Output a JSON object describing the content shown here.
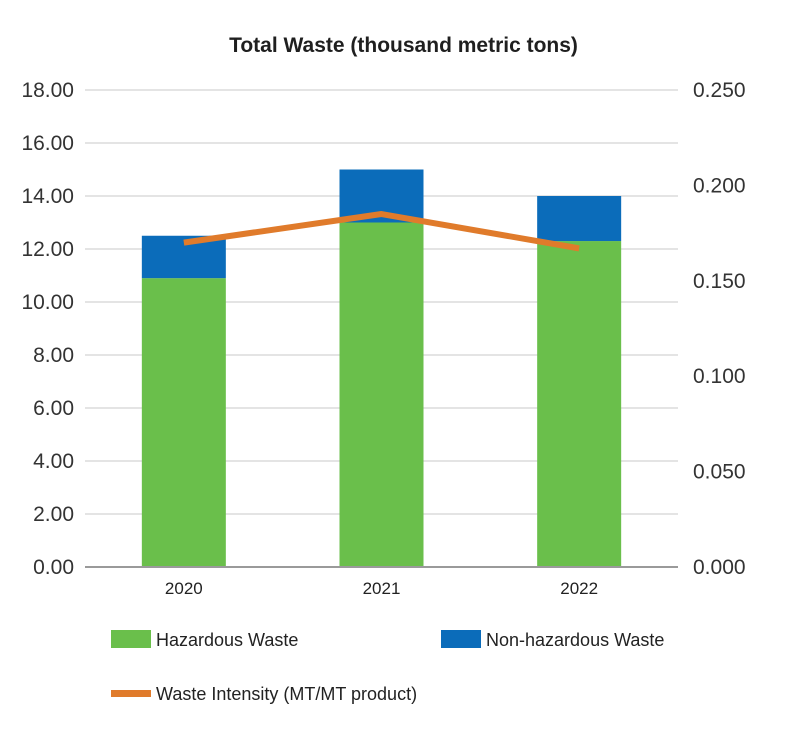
{
  "chart_data": {
    "type": "bar",
    "stacked": true,
    "title": "Total Waste (thousand metric tons)",
    "categories": [
      "2020",
      "2021",
      "2022"
    ],
    "series": [
      {
        "name": "Hazardous Waste",
        "axis": "left",
        "color": "#6abf4b",
        "values": [
          10.9,
          13.0,
          12.3
        ]
      },
      {
        "name": "Non-hazardous Waste",
        "axis": "left",
        "color": "#0b6cba",
        "values": [
          1.6,
          2.0,
          1.7
        ]
      },
      {
        "name": "Waste Intensity (MT/MT product)",
        "axis": "right",
        "type": "line",
        "color": "#e07b2b",
        "values": [
          0.17,
          0.185,
          0.167
        ]
      }
    ],
    "y_left": {
      "ylim": [
        0,
        18
      ],
      "ticks": [
        "0.00",
        "2.00",
        "4.00",
        "6.00",
        "8.00",
        "10.00",
        "12.00",
        "14.00",
        "16.00",
        "18.00"
      ]
    },
    "y_right": {
      "ylim": [
        0,
        0.25
      ],
      "ticks": [
        "0.000",
        "0.050",
        "0.100",
        "0.150",
        "0.200",
        "0.250"
      ]
    },
    "grid": true,
    "legend_position": "bottom"
  }
}
